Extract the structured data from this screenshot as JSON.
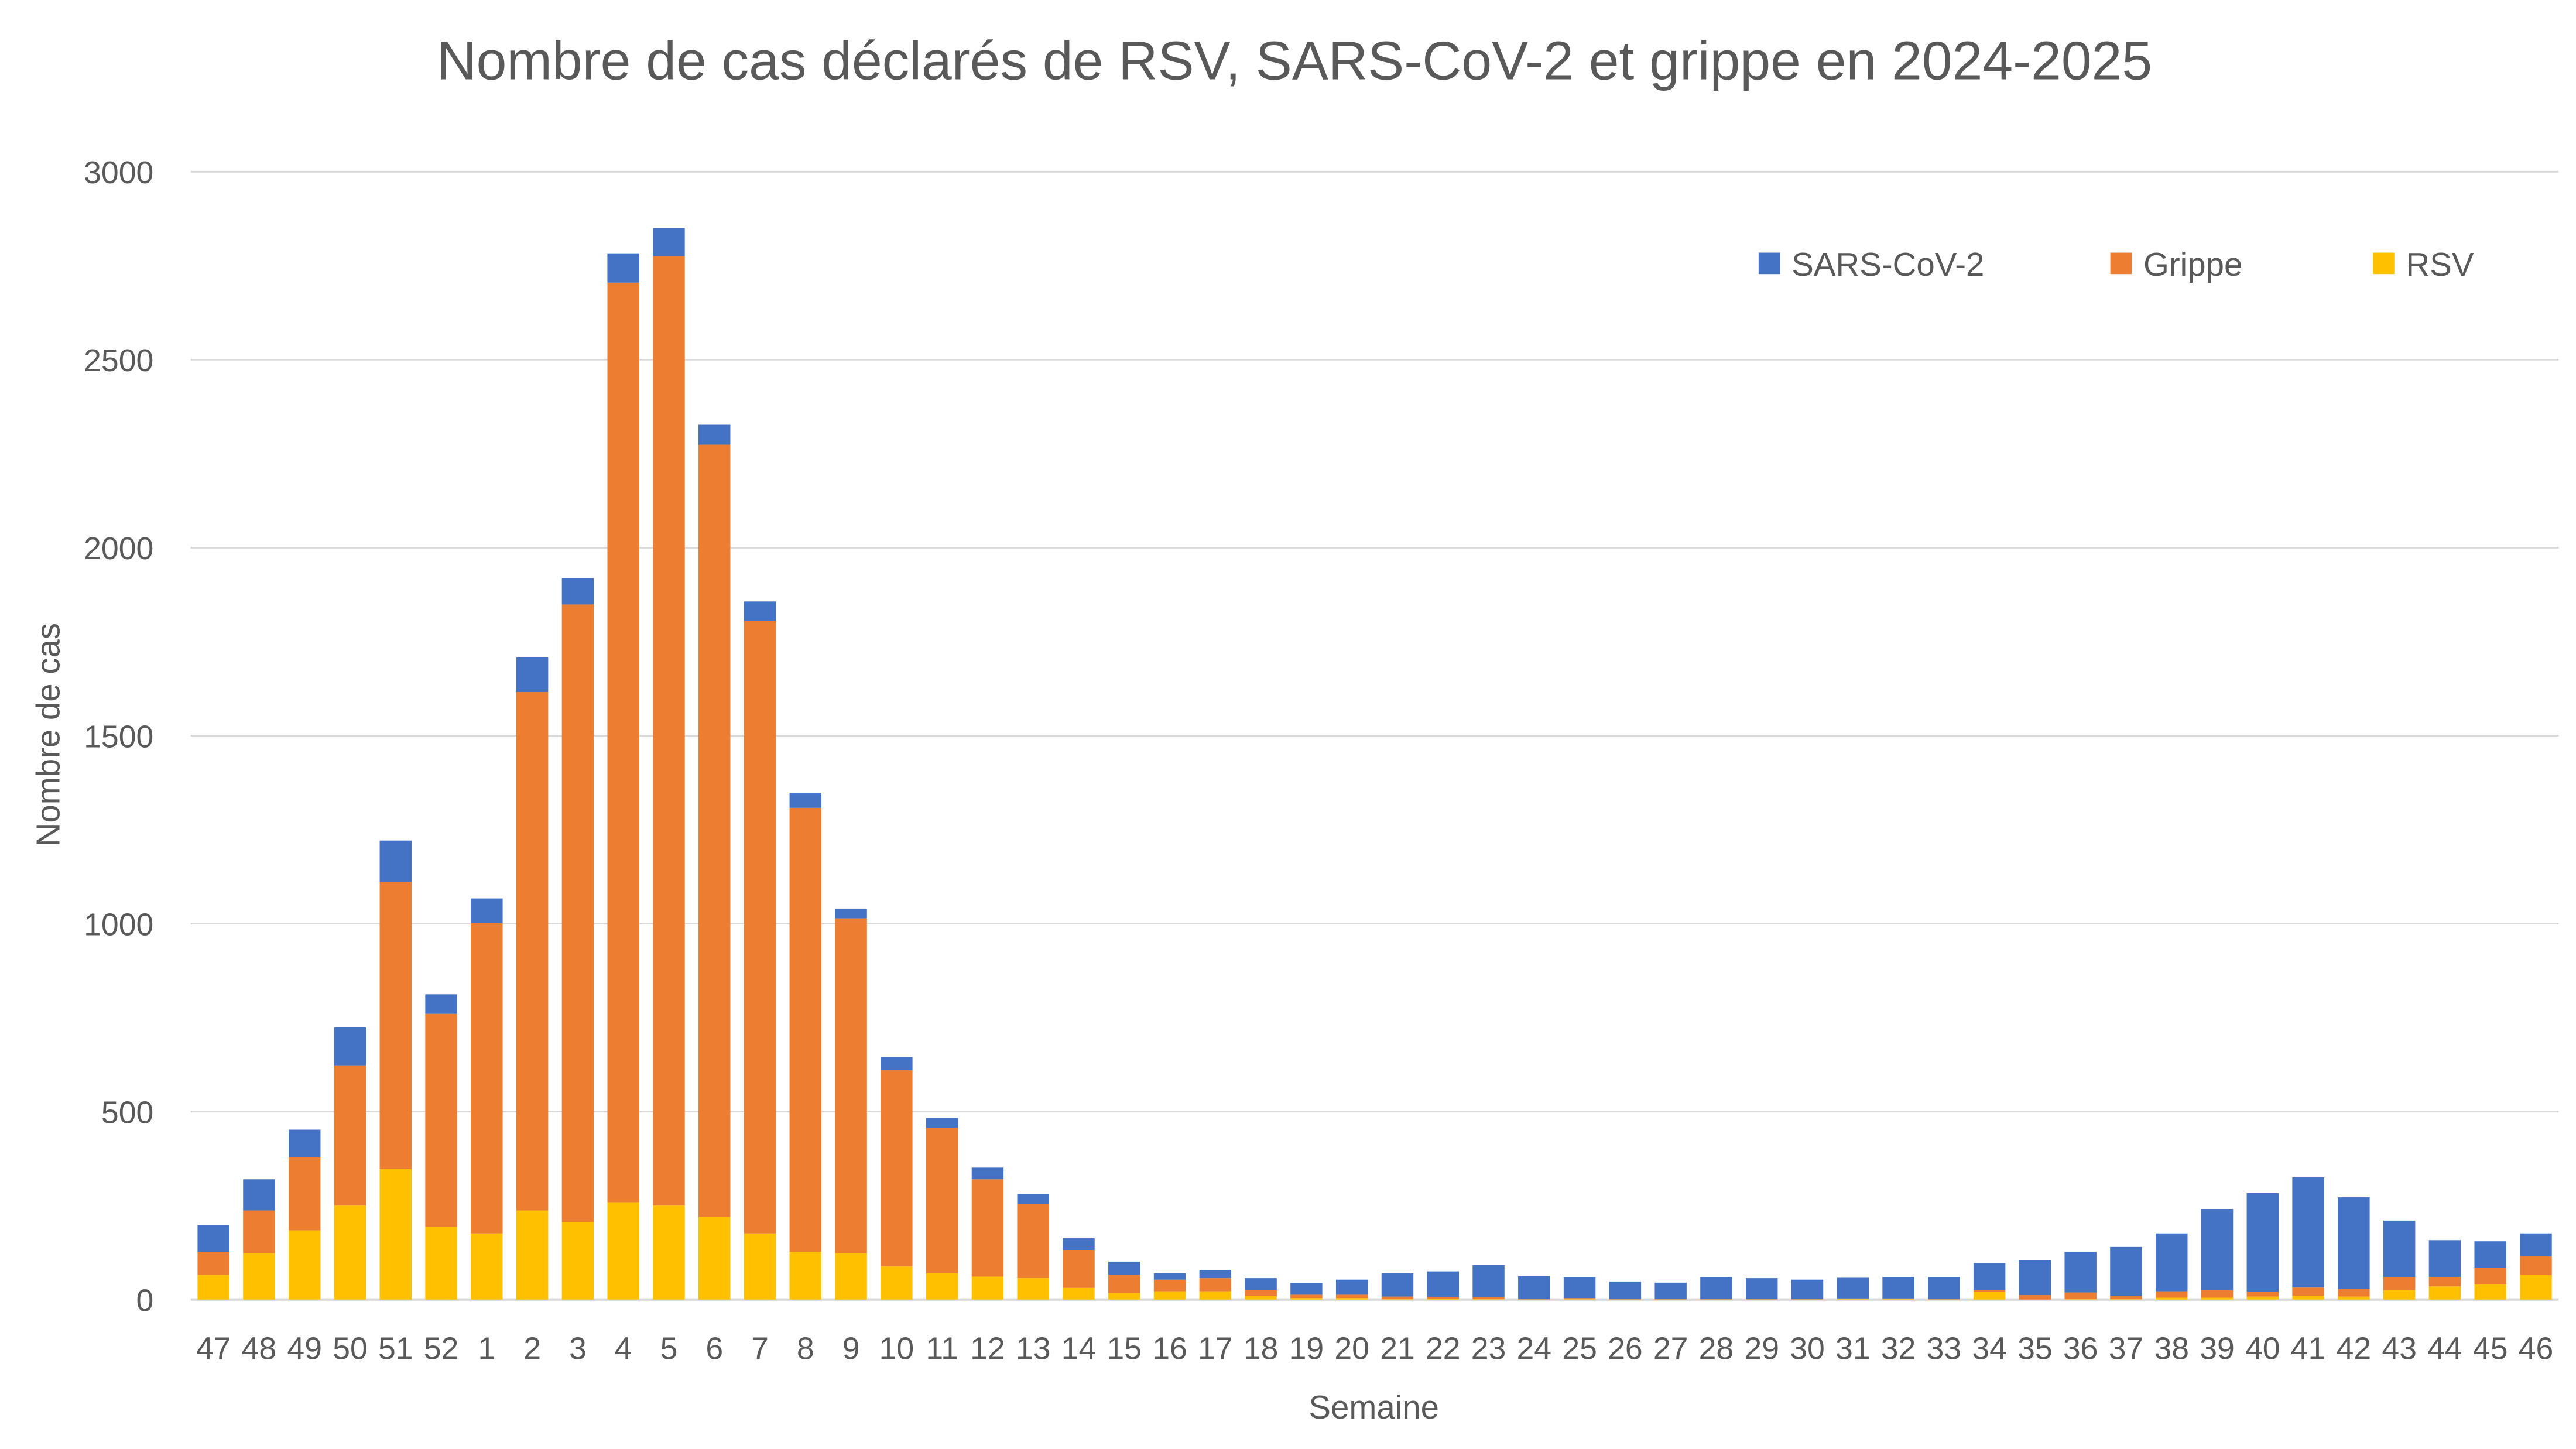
{
  "chart_data": {
    "type": "bar",
    "stacked": true,
    "title": "Nombre de cas déclarés de RSV, SARS-CoV-2 et grippe en 2024-2025",
    "xlabel": "Semaine",
    "ylabel": "Nombre de cas",
    "ylim": [
      0,
      3000
    ],
    "yticks": [
      0,
      500,
      1000,
      1500,
      2000,
      2500,
      3000
    ],
    "grid": true,
    "legend_position": "top-right",
    "categories": [
      "47",
      "48",
      "49",
      "50",
      "51",
      "52",
      "1",
      "2",
      "3",
      "4",
      "5",
      "6",
      "7",
      "8",
      "9",
      "10",
      "11",
      "12",
      "13",
      "14",
      "15",
      "16",
      "17",
      "18",
      "19",
      "20",
      "21",
      "22",
      "23",
      "24",
      "25",
      "26",
      "27",
      "28",
      "29",
      "30",
      "31",
      "32",
      "33",
      "34",
      "35",
      "36",
      "37",
      "38",
      "39",
      "40",
      "41",
      "42",
      "43",
      "44",
      "45",
      "46"
    ],
    "series": [
      {
        "name": "RSV",
        "color": "#FFC000",
        "values": [
          66,
          123,
          184,
          250,
          347,
          193,
          176,
          237,
          206,
          259,
          250,
          220,
          176,
          127,
          123,
          88,
          70,
          61,
          57,
          31,
          18,
          22,
          22,
          9,
          4,
          4,
          1,
          2,
          1,
          0,
          1,
          0,
          0,
          0,
          0,
          0,
          1,
          1,
          0,
          20,
          0,
          1,
          1,
          5,
          5,
          8,
          10,
          8,
          25,
          35,
          40,
          65
        ]
      },
      {
        "name": "Grippe",
        "color": "#ED7D31",
        "values": [
          61,
          114,
          194,
          373,
          764,
          567,
          825,
          1379,
          1643,
          2446,
          2525,
          2054,
          1629,
          1181,
          891,
          522,
          387,
          259,
          198,
          101,
          48,
          31,
          35,
          17,
          9,
          9,
          7,
          5,
          5,
          1,
          3,
          1,
          1,
          1,
          1,
          1,
          2,
          2,
          1,
          5,
          12,
          18,
          8,
          17,
          20,
          13,
          22,
          20,
          35,
          25,
          45,
          50
        ]
      },
      {
        "name": "SARS-CoV-2",
        "color": "#4472C4",
        "values": [
          71,
          83,
          74,
          101,
          110,
          52,
          66,
          92,
          70,
          78,
          75,
          53,
          52,
          40,
          26,
          35,
          26,
          31,
          26,
          31,
          35,
          17,
          22,
          31,
          31,
          40,
          62,
          68,
          86,
          61,
          56,
          47,
          44,
          59,
          56,
          52,
          55,
          57,
          59,
          72,
          92,
          108,
          131,
          154,
          216,
          262,
          293,
          244,
          150,
          98,
          70,
          61
        ]
      }
    ],
    "legend_order": [
      "SARS-CoV-2",
      "Grippe",
      "RSV"
    ]
  }
}
